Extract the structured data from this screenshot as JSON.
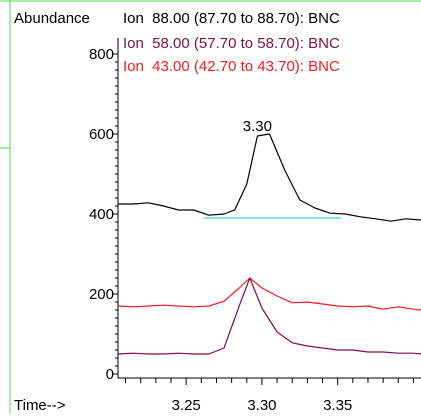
{
  "chart_data": {
    "type": "line",
    "ylabel": "Abundance",
    "xlabel": "Time-->",
    "xlim": [
      3.205,
      3.405
    ],
    "ylim": [
      -10,
      840
    ],
    "x_ticks": [
      3.25,
      3.3,
      3.35
    ],
    "x_tick_labels": [
      "3.25",
      "3.30",
      "3.35"
    ],
    "y_ticks": [
      0,
      200,
      400,
      600,
      800
    ],
    "y_tick_labels": [
      "0",
      "200",
      "400",
      "600",
      "800"
    ],
    "series": [
      {
        "name": "Ion  88.00 (87.70 to 88.70): BNC",
        "color": "#000000",
        "x": [
          3.205,
          3.215,
          3.225,
          3.235,
          3.245,
          3.255,
          3.265,
          3.275,
          3.282,
          3.29,
          3.297,
          3.305,
          3.315,
          3.325,
          3.335,
          3.345,
          3.355,
          3.365,
          3.375,
          3.385,
          3.395,
          3.405
        ],
        "y": [
          425,
          425,
          428,
          420,
          410,
          410,
          397,
          400,
          410,
          475,
          595,
          600,
          510,
          435,
          415,
          402,
          400,
          393,
          388,
          382,
          388,
          385
        ]
      },
      {
        "name": "Ion  58.00 (57.70 to 58.70): BNC",
        "color": "#7b1346",
        "x": [
          3.205,
          3.215,
          3.225,
          3.235,
          3.245,
          3.255,
          3.265,
          3.275,
          3.285,
          3.292,
          3.3,
          3.31,
          3.32,
          3.33,
          3.34,
          3.35,
          3.36,
          3.37,
          3.38,
          3.39,
          3.4,
          3.405
        ],
        "y": [
          50,
          52,
          50,
          50,
          52,
          50,
          50,
          65,
          170,
          240,
          165,
          105,
          78,
          70,
          65,
          60,
          60,
          55,
          55,
          52,
          52,
          50
        ]
      },
      {
        "name": "Ion  43.00 (42.70 to 43.70): BNC",
        "color": "#ee1c25",
        "x": [
          3.205,
          3.215,
          3.225,
          3.235,
          3.245,
          3.255,
          3.265,
          3.275,
          3.285,
          3.292,
          3.3,
          3.31,
          3.32,
          3.33,
          3.34,
          3.35,
          3.36,
          3.37,
          3.38,
          3.39,
          3.4,
          3.405
        ],
        "y": [
          170,
          168,
          170,
          172,
          170,
          168,
          170,
          182,
          215,
          240,
          215,
          195,
          178,
          180,
          175,
          170,
          168,
          170,
          162,
          168,
          162,
          160
        ]
      }
    ],
    "baseline": {
      "color": "#2ad4d8",
      "x": [
        3.262,
        3.352
      ],
      "y": [
        390,
        390
      ]
    },
    "annotations": [
      {
        "text": "3.30",
        "x": 3.297,
        "y": 608
      }
    ],
    "frame_color": "#44dd44"
  }
}
